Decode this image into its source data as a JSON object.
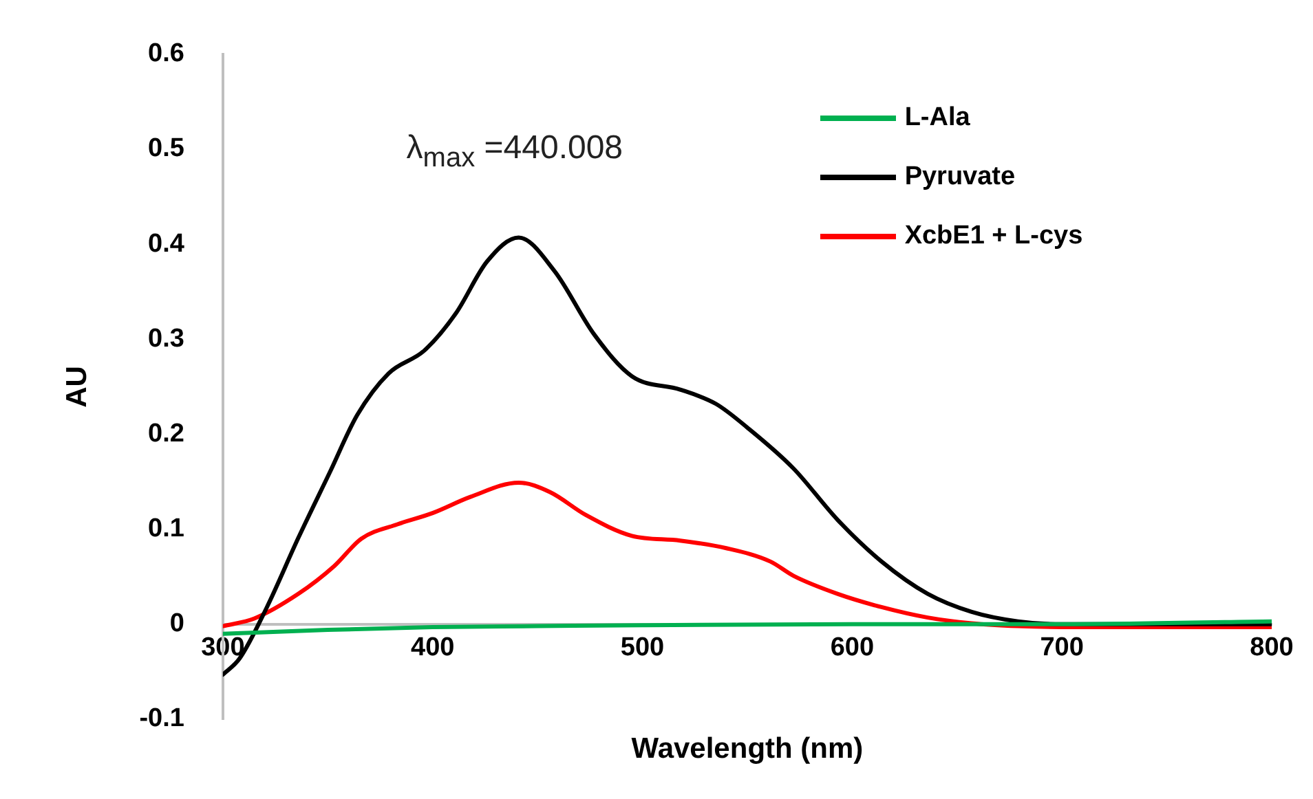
{
  "chart_data": {
    "type": "line",
    "xlabel": "Wavelength (nm)",
    "ylabel": "AU",
    "annotations": [
      "λ$_{max}$ =440.008"
    ],
    "xlim": [
      300,
      800
    ],
    "xticks": [
      300,
      400,
      500,
      600,
      700,
      800
    ],
    "ylim": [
      -0.1,
      0.6
    ],
    "yticks": [
      -0.1,
      0,
      0.1,
      0.2,
      0.3,
      0.4,
      0.5,
      0.6
    ],
    "grid": false,
    "legend": "top right",
    "marker": "none",
    "line_style": "solid",
    "series": [
      {
        "name": "L-Ala",
        "color": "#00b050",
        "x": [
          300,
          350,
          400,
          450,
          500,
          600,
          700,
          800
        ],
        "values": [
          -0.01,
          -0.006,
          -0.003,
          -0.002,
          -0.001,
          0,
          0,
          0.003
        ]
      },
      {
        "name": "Pyruvate",
        "color": "#000000",
        "x": [
          300,
          308,
          321,
          336,
          351,
          364,
          379,
          396,
          411,
          426,
          441,
          458,
          477,
          495,
          518,
          535,
          550,
          572,
          593,
          614,
          636,
          657,
          679,
          700,
          750,
          800
        ],
        "values": [
          -0.053,
          -0.036,
          0.018,
          0.091,
          0.16,
          0.22,
          0.264,
          0.288,
          0.327,
          0.382,
          0.407,
          0.372,
          0.305,
          0.261,
          0.247,
          0.232,
          0.207,
          0.164,
          0.11,
          0.066,
          0.032,
          0.013,
          0.003,
          0,
          0,
          0
        ]
      },
      {
        "name": "XcbE1 + L-cys",
        "color": "#ff0000",
        "x": [
          300,
          315,
          336,
          353,
          366,
          383,
          400,
          418,
          441,
          456,
          473,
          495,
          518,
          540,
          561,
          572,
          593,
          614,
          636,
          657,
          679,
          700,
          743,
          800
        ],
        "values": [
          -0.002,
          0.006,
          0.032,
          0.061,
          0.09,
          0.105,
          0.117,
          0.134,
          0.149,
          0.139,
          0.115,
          0.093,
          0.088,
          0.08,
          0.066,
          0.051,
          0.032,
          0.018,
          0.007,
          0.001,
          -0.002,
          -0.003,
          -0.003,
          -0.003
        ]
      }
    ]
  }
}
